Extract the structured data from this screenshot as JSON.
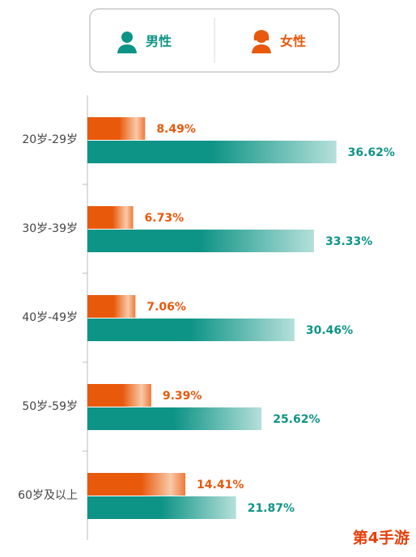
{
  "chart_data": {
    "type": "bar",
    "orientation": "horizontal",
    "categories": [
      "20岁-29岁",
      "30岁-39岁",
      "40岁-49岁",
      "50岁-59岁",
      "60岁及以上"
    ],
    "series": [
      {
        "name": "男性",
        "color": "#0e9486",
        "values": [
          36.62,
          33.33,
          30.46,
          25.62,
          21.87
        ],
        "value_labels": [
          "36.62%",
          "33.33%",
          "30.46%",
          "25.62%",
          "21.87%"
        ]
      },
      {
        "name": "女性",
        "color": "#e8590c",
        "values": [
          8.49,
          6.73,
          7.06,
          9.39,
          14.41
        ],
        "value_labels": [
          "8.49%",
          "6.73%",
          "7.06%",
          "9.39%",
          "14.41%"
        ]
      }
    ],
    "xlim": [
      0,
      40
    ],
    "watermark": "第4手游"
  }
}
